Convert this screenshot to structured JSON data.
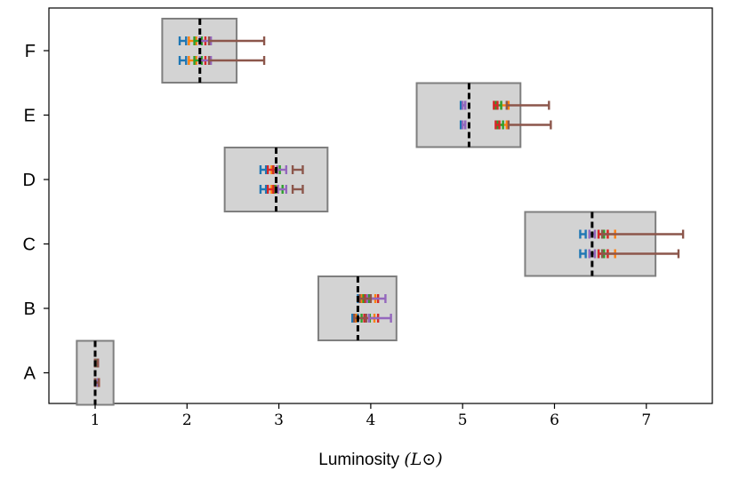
{
  "chart_data": {
    "type": "box",
    "xlabel": "Luminosity",
    "xlabel_unit_math": "(L⊙)",
    "xlim": [
      0.5,
      7.75
    ],
    "x_ticks": [
      1,
      2,
      3,
      4,
      5,
      6,
      7
    ],
    "categories": [
      "A",
      "B",
      "C",
      "D",
      "E",
      "F"
    ],
    "grid": false,
    "boxes": [
      {
        "category": "A",
        "low": 0.8,
        "high": 1.2,
        "median": 1.0
      },
      {
        "category": "B",
        "low": 3.43,
        "high": 4.28,
        "median": 3.86
      },
      {
        "category": "C",
        "low": 5.68,
        "high": 7.1,
        "median": 6.41
      },
      {
        "category": "D",
        "low": 2.41,
        "high": 3.53,
        "median": 2.97
      },
      {
        "category": "E",
        "low": 4.5,
        "high": 5.63,
        "median": 5.07
      },
      {
        "category": "F",
        "low": 1.73,
        "high": 2.54,
        "median": 2.14
      }
    ],
    "series_colors": [
      "#1f77b4",
      "#ff7f0e",
      "#2ca02c",
      "#d62728",
      "#9467bd",
      "#8c564b"
    ],
    "estimates": {
      "A": [
        [
          [
            1.0,
            1.02
          ],
          [
            1.0,
            1.03
          ],
          [
            1.0,
            1.02
          ],
          [
            1.0,
            1.03
          ],
          [
            1.0,
            1.03
          ],
          [
            1.0,
            1.03
          ]
        ],
        [
          [
            1.0,
            1.03
          ],
          [
            1.0,
            1.04
          ],
          [
            1.0,
            1.03
          ],
          [
            1.0,
            1.04
          ],
          [
            1.0,
            1.03
          ],
          [
            1.0,
            1.04
          ]
        ]
      ],
      "B": [
        [
          [
            3.86,
            3.92
          ],
          [
            3.9,
            4.05
          ],
          [
            3.92,
            3.98
          ],
          [
            3.94,
            4.08
          ],
          [
            3.96,
            4.16
          ],
          [
            3.88,
            4.0
          ]
        ],
        [
          [
            3.8,
            3.86
          ],
          [
            3.84,
            4.04
          ],
          [
            3.9,
            3.99
          ],
          [
            3.93,
            4.08
          ],
          [
            3.98,
            4.22
          ],
          [
            3.82,
            3.95
          ]
        ]
      ],
      "C": [
        [
          [
            6.28,
            6.34
          ],
          [
            6.58,
            6.66
          ],
          [
            6.48,
            6.54
          ],
          [
            6.48,
            6.58
          ],
          [
            6.38,
            6.44
          ],
          [
            6.52,
            7.4
          ]
        ],
        [
          [
            6.28,
            6.34
          ],
          [
            6.58,
            6.66
          ],
          [
            6.48,
            6.54
          ],
          [
            6.48,
            6.58
          ],
          [
            6.38,
            6.44
          ],
          [
            6.52,
            7.35
          ]
        ]
      ],
      "D": [
        [
          [
            2.8,
            2.86
          ],
          [
            2.92,
            2.98
          ],
          [
            2.94,
            3.01
          ],
          [
            2.88,
            2.94
          ],
          [
            2.98,
            3.08
          ],
          [
            3.15,
            3.26
          ]
        ],
        [
          [
            2.8,
            2.86
          ],
          [
            2.92,
            2.98
          ],
          [
            2.96,
            3.04
          ],
          [
            2.88,
            2.94
          ],
          [
            2.99,
            3.08
          ],
          [
            3.15,
            3.26
          ]
        ]
      ],
      "E": [
        [
          [
            4.98,
            5.03
          ],
          [
            5.42,
            5.5
          ],
          [
            5.36,
            5.42
          ],
          [
            5.34,
            5.38
          ],
          [
            5.0,
            5.03
          ],
          [
            5.48,
            5.94
          ]
        ],
        [
          [
            4.98,
            5.03
          ],
          [
            5.4,
            5.48
          ],
          [
            5.38,
            5.44
          ],
          [
            5.36,
            5.4
          ],
          [
            5.0,
            5.03
          ],
          [
            5.5,
            5.96
          ]
        ]
      ],
      "F": [
        [
          [
            1.92,
            1.99
          ],
          [
            2.02,
            2.1
          ],
          [
            2.08,
            2.16
          ],
          [
            2.14,
            2.2
          ],
          [
            2.14,
            2.26
          ],
          [
            2.24,
            2.84
          ]
        ],
        [
          [
            1.92,
            1.99
          ],
          [
            2.02,
            2.1
          ],
          [
            2.08,
            2.16
          ],
          [
            2.14,
            2.2
          ],
          [
            2.14,
            2.26
          ],
          [
            2.24,
            2.84
          ]
        ]
      ]
    }
  }
}
